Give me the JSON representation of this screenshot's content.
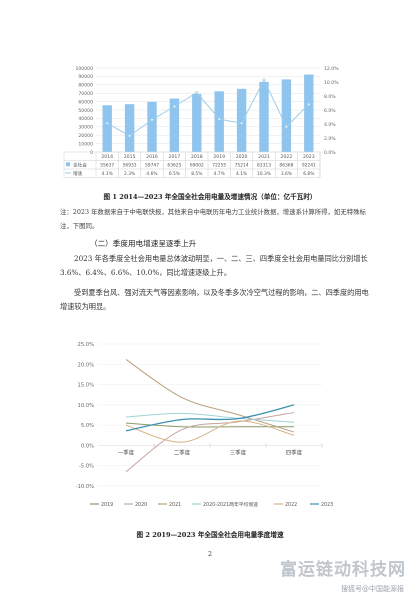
{
  "figure1": {
    "caption": "图 1 2014—2023 年全国全社会用电量及增速情况（单位：亿千瓦时）",
    "chart_data": {
      "type": "bar",
      "categories": [
        "2014",
        "2015",
        "2016",
        "2017",
        "2018",
        "2019",
        "2020",
        "2021",
        "2022",
        "2023"
      ],
      "series": [
        {
          "name": "全社会用电量",
          "values": [
            55637,
            56933,
            59747,
            63625,
            69002,
            72255,
            75214,
            83313,
            86368,
            92241
          ]
        },
        {
          "name": "增速",
          "values": [
            4.1,
            2.3,
            4.6,
            6.5,
            8.5,
            4.7,
            4.1,
            10.3,
            3.6,
            6.8
          ]
        }
      ],
      "left_axis_ticks": [
        "0",
        "10000",
        "20000",
        "30000",
        "40000",
        "50000",
        "60000",
        "70000",
        "80000",
        "90000",
        "100000"
      ],
      "right_axis_ticks": [
        "0.0%",
        "2.0%",
        "4.0%",
        "6.0%",
        "8.0%",
        "10.0%",
        "12.0%"
      ],
      "ylim_left": [
        0,
        100000
      ],
      "ylim_right": [
        0,
        12
      ],
      "table_rows": [
        {
          "label": "全社会",
          "values": [
            "55637",
            "56933",
            "59747",
            "63625",
            "69002",
            "72255",
            "75214",
            "83313",
            "86368",
            "92241"
          ]
        },
        {
          "label": "增速",
          "values": [
            "4.1%",
            "2.3%",
            "4.6%",
            "6.5%",
            "8.5%",
            "4.7%",
            "4.1%",
            "10.3%",
            "3.6%",
            "6.8%"
          ]
        }
      ],
      "bar_color": "#8fc4ee",
      "line_color": "#9ccde9"
    }
  },
  "note": "注：2023 年数据来自于中电联快报，其他来自中电联历年电力工业统计数据，增速系计算所得，如无特殊标注，下图同。",
  "section_title": "（二）季度用电增速呈逐季上升",
  "paragraph1": "2023 年各季度全社会用电量总体波动明显，一、二、三、四季度全社会用电量同比分别增长 3.6%、6.4%、6.6%、10.0%，同比增速逐级上升。",
  "paragraph2": "受到夏季台风、强对流天气等因素影响，以及冬季多次冷空气过程的影响，二、四季度的用电增速较为明显。",
  "figure2": {
    "caption": "图 2 2019—2023 年全国全社会用电量季度增速",
    "chart_data": {
      "type": "line",
      "categories": [
        "一季度",
        "二季度",
        "三季度",
        "四季度"
      ],
      "ylim": [
        -10,
        25
      ],
      "y_ticks": [
        "25.0%",
        "20.0%",
        "15.0%",
        "10.0%",
        "5.0%",
        "0.0%",
        "-5.0%",
        "-10.0%"
      ],
      "series": [
        {
          "name": "2019",
          "values": [
            5.5,
            4.6,
            4.6,
            4.6
          ],
          "color": "#8a9a6b"
        },
        {
          "name": "2020",
          "values": [
            -6.5,
            3.9,
            5.8,
            8.1
          ],
          "color": "#c6a4a0"
        },
        {
          "name": "2021",
          "values": [
            21.2,
            11.8,
            7.6,
            3.3
          ],
          "color": "#b9a07e"
        },
        {
          "name": "2020-2021两年平均增速",
          "values": [
            7.0,
            7.9,
            6.7,
            5.7
          ],
          "color": "#9fd3d6"
        },
        {
          "name": "2022",
          "values": [
            5.0,
            0.8,
            6.0,
            2.5
          ],
          "color": "#d7b487"
        },
        {
          "name": "2023",
          "values": [
            3.6,
            6.4,
            6.6,
            10.0
          ],
          "color": "#3c8fb0"
        }
      ]
    }
  },
  "page_number": "2",
  "watermark": {
    "main": "富运链动科技网",
    "sub": "搜狐号@中国能源报"
  }
}
